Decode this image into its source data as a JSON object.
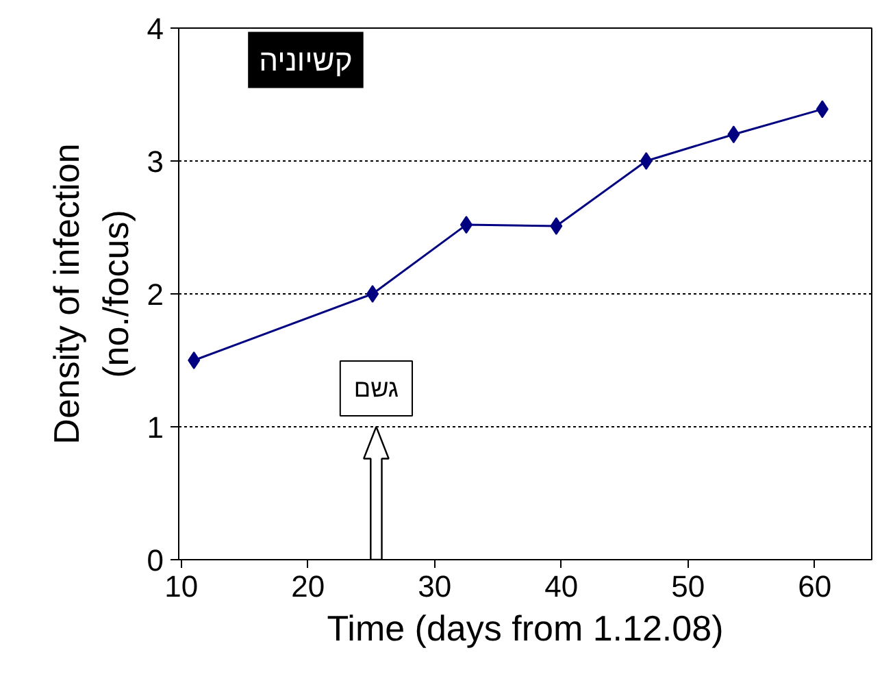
{
  "chart_data": {
    "type": "line",
    "title": "קשיוניה",
    "xlabel": "Time (days from 1.12.08)",
    "ylabel": "Density of infection\n(no./focus)",
    "x": [
      11.0,
      25.1,
      32.5,
      39.6,
      46.7,
      53.6,
      60.6
    ],
    "series": [
      {
        "color": "#000080",
        "values": [
          1.5,
          2.0,
          2.52,
          2.51,
          3.0,
          3.2,
          3.39
        ]
      }
    ],
    "xlim": [
      9.8,
      64.5
    ],
    "xticks": [
      10,
      20,
      30,
      40,
      50,
      60
    ],
    "ylim": [
      0,
      4
    ],
    "yticks": [
      0,
      1,
      2,
      3,
      4
    ],
    "grid": "y",
    "marker": "diamond",
    "line_style": "solid",
    "annotations": [
      "גשם"
    ]
  }
}
